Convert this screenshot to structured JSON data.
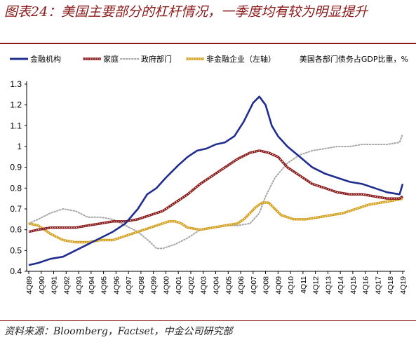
{
  "title": "图表24：美国主要部分的杠杆情况，一季度均有较为明显提升",
  "source": "资料来源：Bloomberg，Factset，中金公司研究部",
  "legend": {
    "items": [
      {
        "label": "金融机构",
        "style": "solid",
        "color": "#1f2d8f"
      },
      {
        "label": "家庭",
        "style": "beaded",
        "color": "#8b1a1a"
      },
      {
        "label": "政府部门",
        "style": "dotted",
        "color": "#a6a6a6"
      },
      {
        "label": "非金融企业（左轴）",
        "style": "beaded",
        "color": "#d4a020"
      }
    ],
    "right_note": "美国各部门债务占GDP比重，%"
  },
  "chart_data": {
    "type": "line",
    "ylim": [
      0.4,
      1.3
    ],
    "yticks": [
      "0.4",
      "0.5",
      "0.6",
      "0.7",
      "0.8",
      "0.9",
      "1",
      "1.1",
      "1.2",
      "1.3"
    ],
    "x_tick_labels": [
      "4Q89",
      "4Q90",
      "4Q91",
      "4Q92",
      "4Q93",
      "4Q94",
      "4Q95",
      "4Q96",
      "4Q97",
      "4Q98",
      "4Q99",
      "4Q00",
      "4Q01",
      "4Q02",
      "4Q03",
      "4Q04",
      "4Q05",
      "4Q06",
      "4Q07",
      "4Q08",
      "4Q09",
      "4Q10",
      "4Q11",
      "4Q12",
      "4Q13",
      "4Q14",
      "4Q15",
      "4Q16",
      "4Q17",
      "4Q18",
      "4Q19"
    ],
    "x_start_year": 1989,
    "series": [
      {
        "name": "金融机构",
        "color": "#1f2d8f",
        "x": [
          1989.75,
          1990.5,
          1991.5,
          1992.5,
          1993.5,
          1994.5,
          1995.5,
          1996.5,
          1997.5,
          1998.5,
          1999.25,
          2000,
          2000.75,
          2001.75,
          2002.5,
          2003.25,
          2004,
          2004.75,
          2005.5,
          2006.25,
          2007,
          2007.75,
          2008.25,
          2008.75,
          2009.25,
          2009.75,
          2010.5,
          2011.5,
          2012.5,
          2013.5,
          2014.5,
          2015.5,
          2016.5,
          2017.5,
          2018.5,
          2019.5,
          2019.75
        ],
        "y": [
          0.43,
          0.44,
          0.46,
          0.47,
          0.5,
          0.53,
          0.56,
          0.59,
          0.63,
          0.7,
          0.77,
          0.8,
          0.85,
          0.91,
          0.95,
          0.98,
          0.99,
          1.01,
          1.02,
          1.05,
          1.12,
          1.21,
          1.24,
          1.2,
          1.1,
          1.05,
          1.0,
          0.95,
          0.9,
          0.87,
          0.85,
          0.83,
          0.82,
          0.8,
          0.78,
          0.77,
          0.82
        ]
      },
      {
        "name": "家庭",
        "color": "#8b1a1a",
        "x": [
          1989.75,
          1990.5,
          1991.5,
          1992.5,
          1993.5,
          1994.5,
          1995.5,
          1996.5,
          1997.5,
          1998.5,
          1999.5,
          2000.5,
          2001.5,
          2002.5,
          2003.5,
          2004.5,
          2005.5,
          2006.5,
          2007.5,
          2008.25,
          2009.0,
          2009.75,
          2010.5,
          2011.5,
          2012.5,
          2013.5,
          2014.5,
          2015.5,
          2016.5,
          2017.5,
          2018.5,
          2019.5,
          2019.75
        ],
        "y": [
          0.59,
          0.6,
          0.61,
          0.61,
          0.61,
          0.62,
          0.63,
          0.64,
          0.64,
          0.65,
          0.67,
          0.69,
          0.73,
          0.77,
          0.82,
          0.86,
          0.9,
          0.94,
          0.97,
          0.98,
          0.97,
          0.95,
          0.9,
          0.86,
          0.82,
          0.8,
          0.78,
          0.77,
          0.77,
          0.76,
          0.75,
          0.75,
          0.76
        ]
      },
      {
        "name": "政府部门",
        "color": "#a6a6a6",
        "x": [
          1989.75,
          1990.5,
          1991.5,
          1992.5,
          1993.5,
          1994.5,
          1995.5,
          1996.5,
          1997.5,
          1998.5,
          1999.5,
          2000.0,
          2000.5,
          2001.0,
          2001.5,
          2002.5,
          2003.5,
          2004.5,
          2005.5,
          2006.5,
          2007.5,
          2008.25,
          2008.75,
          2009.5,
          2010.5,
          2011.5,
          2012.5,
          2013.5,
          2014.5,
          2015.5,
          2016.5,
          2017.5,
          2018.5,
          2019.5,
          2019.75
        ],
        "y": [
          0.63,
          0.65,
          0.68,
          0.7,
          0.69,
          0.66,
          0.66,
          0.65,
          0.62,
          0.59,
          0.54,
          0.51,
          0.51,
          0.52,
          0.53,
          0.56,
          0.6,
          0.61,
          0.62,
          0.62,
          0.63,
          0.68,
          0.76,
          0.85,
          0.92,
          0.96,
          0.98,
          0.99,
          1.0,
          1.0,
          1.01,
          1.01,
          1.01,
          1.02,
          1.06
        ]
      },
      {
        "name": "非金融企业（左轴）",
        "color": "#d4a020",
        "x": [
          1989.75,
          1990.5,
          1991.5,
          1992.5,
          1993.5,
          1994.5,
          1995.5,
          1996.5,
          1997.5,
          1998.5,
          1999.5,
          2000.5,
          2001.0,
          2001.5,
          2002.0,
          2002.5,
          2003.5,
          2004.5,
          2005.5,
          2006.5,
          2007.0,
          2007.5,
          2008.0,
          2008.5,
          2009.0,
          2009.5,
          2010.0,
          2011.0,
          2012.0,
          2013.0,
          2014.0,
          2015.0,
          2016.0,
          2017.0,
          2018.0,
          2019.0,
          2019.75
        ],
        "y": [
          0.63,
          0.62,
          0.58,
          0.55,
          0.54,
          0.54,
          0.55,
          0.55,
          0.57,
          0.59,
          0.61,
          0.63,
          0.64,
          0.64,
          0.63,
          0.61,
          0.6,
          0.61,
          0.62,
          0.63,
          0.65,
          0.68,
          0.71,
          0.73,
          0.73,
          0.7,
          0.67,
          0.65,
          0.65,
          0.66,
          0.67,
          0.68,
          0.7,
          0.72,
          0.73,
          0.74,
          0.75
        ]
      }
    ]
  }
}
